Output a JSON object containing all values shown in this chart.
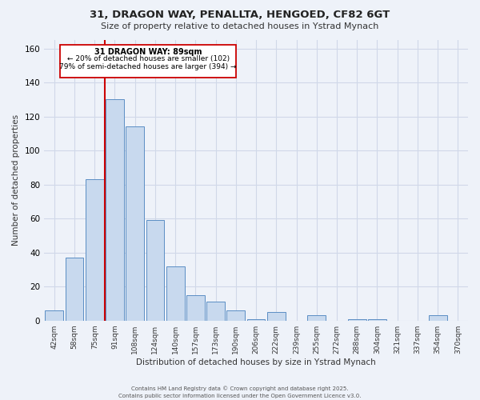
{
  "title": "31, DRAGON WAY, PENALLTA, HENGOED, CF82 6GT",
  "subtitle": "Size of property relative to detached houses in Ystrad Mynach",
  "xlabel": "Distribution of detached houses by size in Ystrad Mynach",
  "ylabel": "Number of detached properties",
  "bar_color": "#c8d9ee",
  "bar_edge_color": "#5b8ec4",
  "grid_color": "#d0d8e8",
  "background_color": "#eef2f9",
  "annotation_box_color": "#ffffff",
  "annotation_border_color": "#cc0000",
  "vline_color": "#cc0000",
  "annotation_text_line1": "31 DRAGON WAY: 89sqm",
  "annotation_text_line2": "← 20% of detached houses are smaller (102)",
  "annotation_text_line3": "79% of semi-detached houses are larger (394) →",
  "footer_line1": "Contains HM Land Registry data © Crown copyright and database right 2025.",
  "footer_line2": "Contains public sector information licensed under the Open Government Licence v3.0.",
  "categories": [
    "42sqm",
    "58sqm",
    "75sqm",
    "91sqm",
    "108sqm",
    "124sqm",
    "140sqm",
    "157sqm",
    "173sqm",
    "190sqm",
    "206sqm",
    "222sqm",
    "239sqm",
    "255sqm",
    "272sqm",
    "288sqm",
    "304sqm",
    "321sqm",
    "337sqm",
    "354sqm",
    "370sqm"
  ],
  "values": [
    6,
    37,
    83,
    130,
    114,
    59,
    32,
    15,
    11,
    6,
    1,
    5,
    0,
    3,
    0,
    1,
    1,
    0,
    0,
    3,
    0
  ],
  "ylim": [
    0,
    165
  ],
  "yticks": [
    0,
    20,
    40,
    60,
    80,
    100,
    120,
    140,
    160
  ],
  "vline_bin_index": 3
}
